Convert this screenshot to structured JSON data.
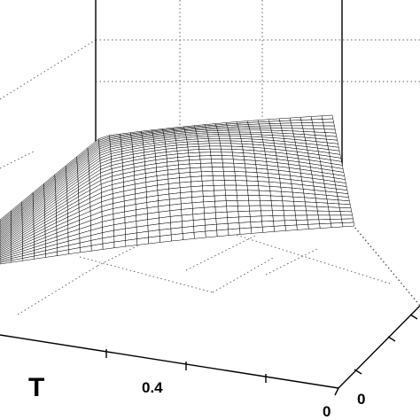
{
  "chart_data": {
    "type": "surface",
    "xlabel": "T",
    "x_tick_labels": [
      "0.4",
      "0"
    ],
    "y_tick_labels": [
      "0"
    ],
    "grid": true,
    "colors": {
      "surface_fill": "#ffffff",
      "mesh": "#000000",
      "grid": "#555555"
    },
    "surface": {
      "description_rows": 31,
      "description_cols": 31
    }
  }
}
